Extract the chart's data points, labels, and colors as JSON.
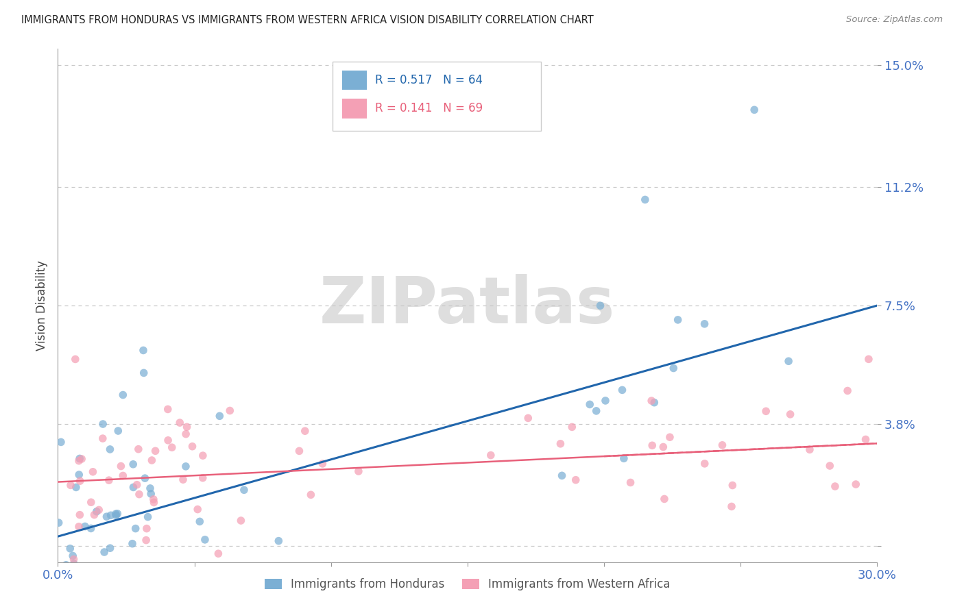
{
  "title": "IMMIGRANTS FROM HONDURAS VS IMMIGRANTS FROM WESTERN AFRICA VISION DISABILITY CORRELATION CHART",
  "source": "Source: ZipAtlas.com",
  "ylabel": "Vision Disability",
  "xlim": [
    0.0,
    0.3
  ],
  "ylim": [
    -0.005,
    0.155
  ],
  "ytick_vals": [
    0.0,
    0.038,
    0.075,
    0.112,
    0.15
  ],
  "ytick_labels": [
    "",
    "3.8%",
    "7.5%",
    "11.2%",
    "15.0%"
  ],
  "xtick_vals": [
    0.0,
    0.05,
    0.1,
    0.15,
    0.2,
    0.25,
    0.3
  ],
  "xtick_labels": [
    "0.0%",
    "",
    "",
    "",
    "",
    "",
    "30.0%"
  ],
  "blue_R": 0.517,
  "blue_N": 64,
  "pink_R": 0.141,
  "pink_N": 69,
  "blue_color": "#7BAFD4",
  "pink_color": "#F4A0B5",
  "blue_line_color": "#2166AC",
  "pink_line_color": "#E8607A",
  "legend_label_blue": "Immigrants from Honduras",
  "legend_label_pink": "Immigrants from Western Africa",
  "watermark": "ZIPatlas",
  "background_color": "#ffffff",
  "grid_color": "#c8c8c8",
  "axis_label_color": "#4472c4",
  "title_color": "#222222",
  "ylabel_color": "#444444",
  "blue_trend_x": [
    0.0,
    0.3
  ],
  "blue_trend_y": [
    0.003,
    0.075
  ],
  "pink_trend_x": [
    0.0,
    0.3
  ],
  "pink_trend_y": [
    0.02,
    0.032
  ]
}
